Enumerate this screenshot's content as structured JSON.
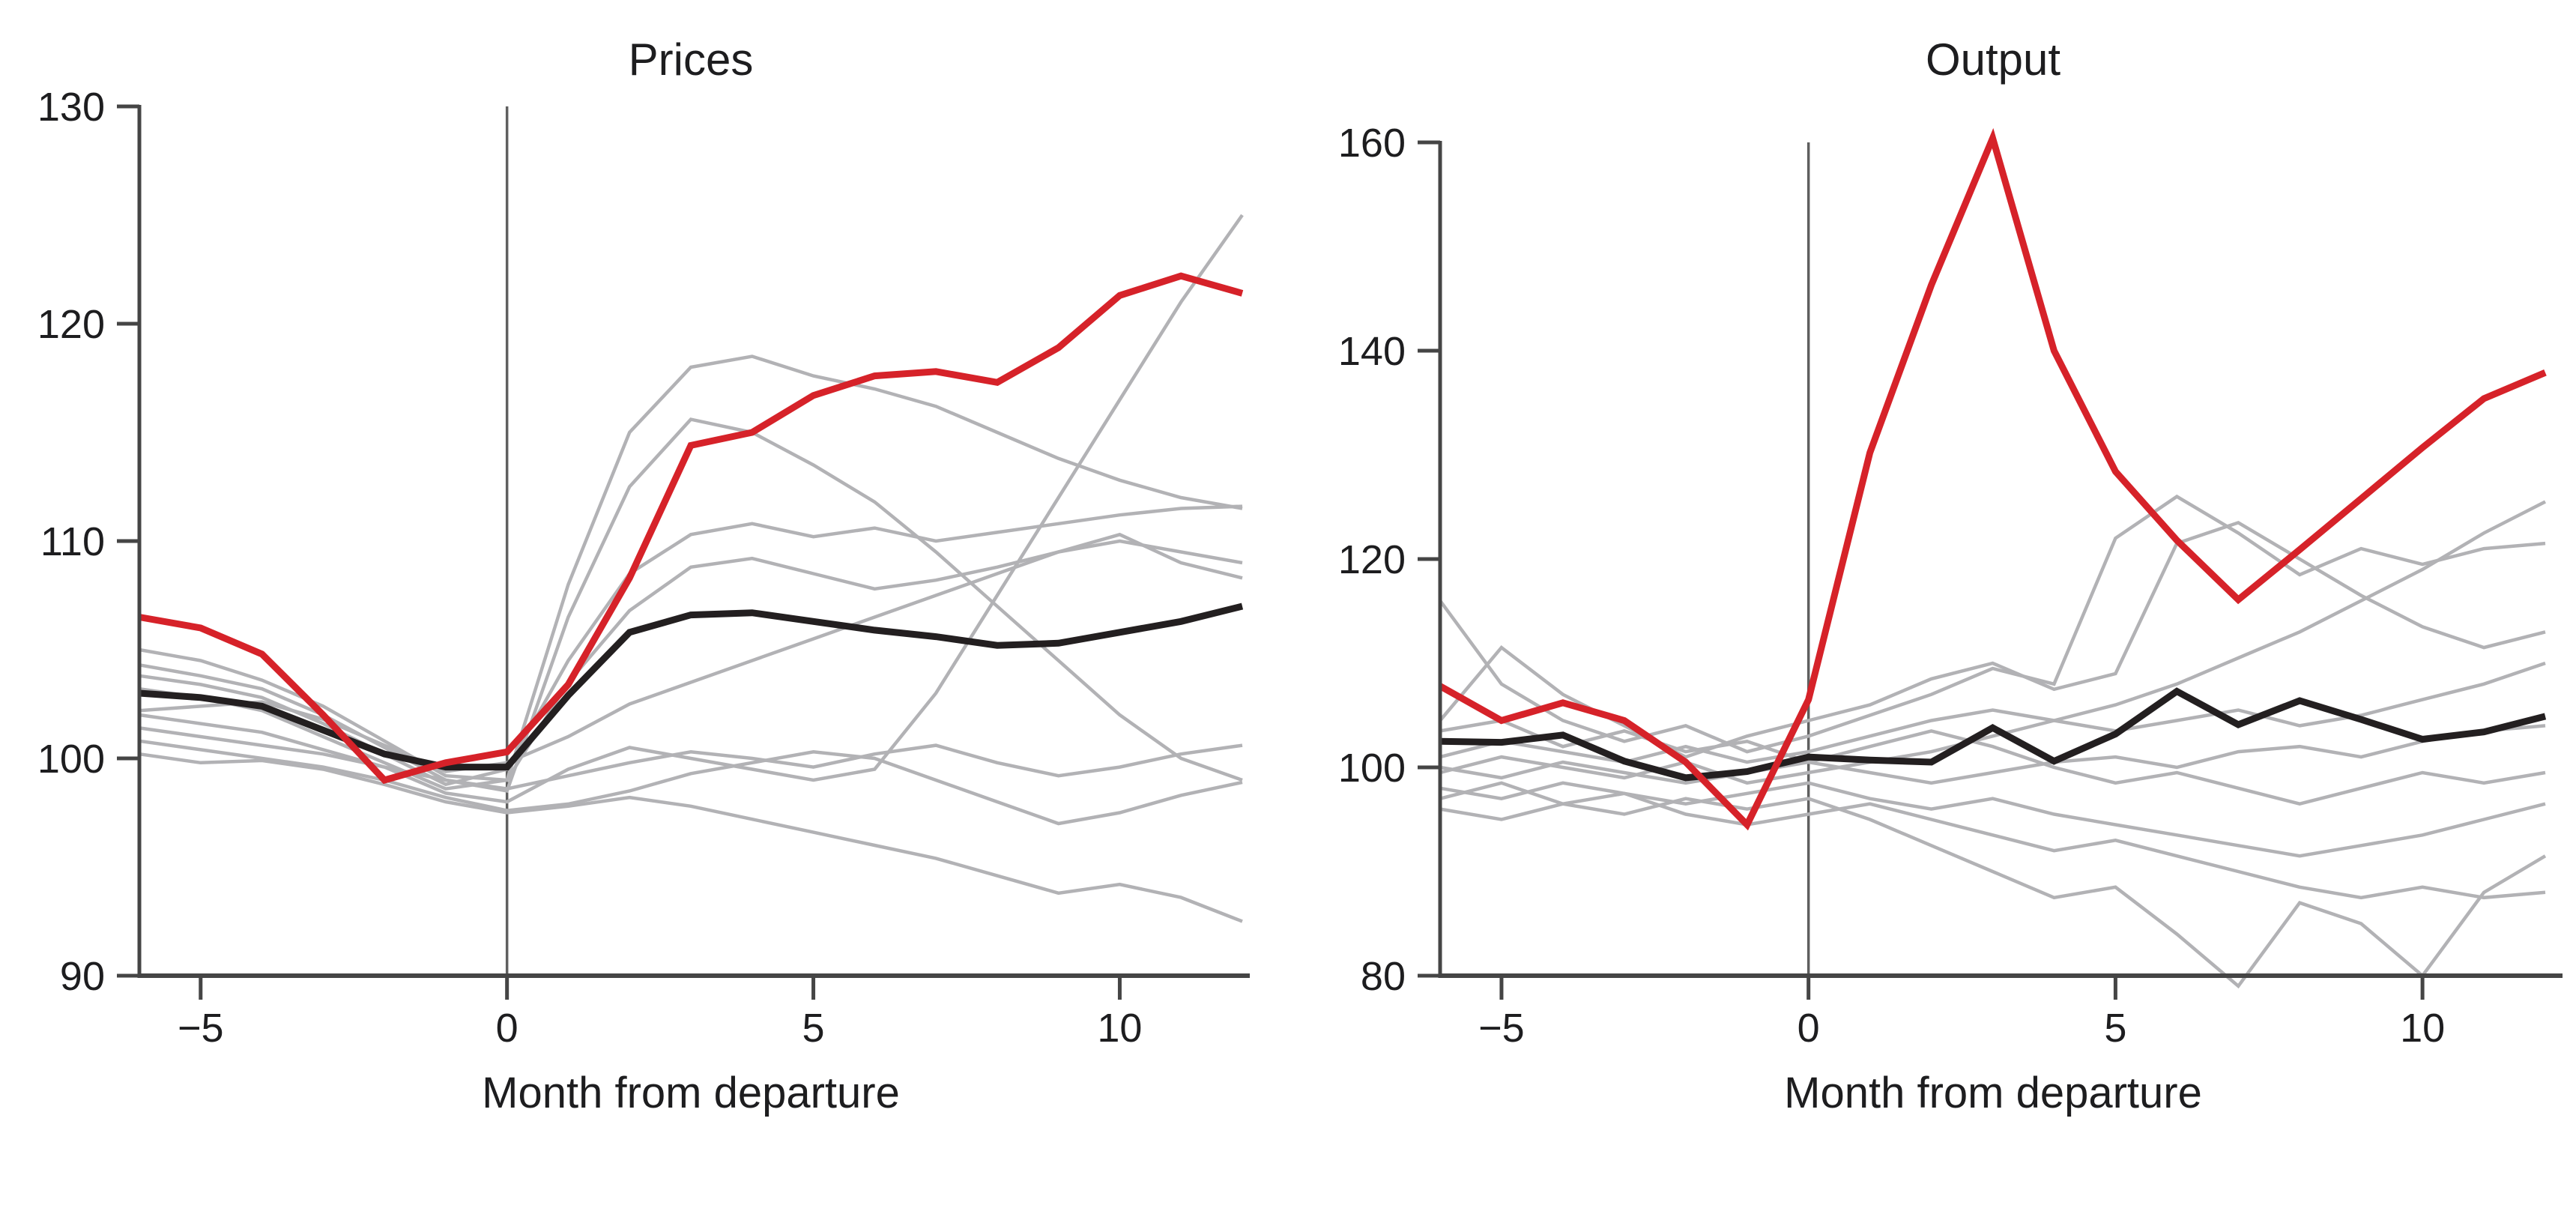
{
  "figure": {
    "background": "#ffffff",
    "text_color": "#1d1d1f",
    "axis_color": "#454545",
    "event_line_color": "#5f5f5f"
  },
  "chart_data": [
    {
      "type": "line",
      "title": "Prices",
      "xlabel": "Month from departure",
      "xlim": [
        -6,
        12
      ],
      "ylim": [
        90,
        130
      ],
      "grid": false,
      "legend": "none",
      "event_line_x": 0,
      "x": [
        -6,
        -5,
        -4,
        -3,
        -2,
        -1,
        0,
        1,
        2,
        3,
        4,
        5,
        6,
        7,
        8,
        9,
        10,
        11,
        12
      ],
      "xticks": [
        -5,
        0,
        5,
        10
      ],
      "xtick_labels": [
        "−5",
        "0",
        "5",
        "10"
      ],
      "yticks": [
        90,
        100,
        110,
        120,
        130
      ],
      "ytick_labels": [
        "90",
        "100",
        "110",
        "120",
        "130"
      ],
      "series": [
        {
          "name": "gray_1",
          "color": "#b2b2b5",
          "width": 4.5,
          "values": [
            105.0,
            104.5,
            103.6,
            102.4,
            100.8,
            99.2,
            99.0,
            108.0,
            115.0,
            118.0,
            118.5,
            117.6,
            117.0,
            116.2,
            115.0,
            113.8,
            112.8,
            112.0,
            111.5
          ]
        },
        {
          "name": "gray_2",
          "color": "#b2b2b5",
          "width": 4.5,
          "values": [
            104.3,
            103.8,
            103.2,
            102.0,
            100.5,
            99.0,
            98.5,
            106.5,
            112.5,
            115.6,
            115.0,
            113.5,
            111.8,
            109.5,
            107.0,
            104.5,
            102.0,
            100.0,
            99.0
          ]
        },
        {
          "name": "gray_3",
          "color": "#b2b2b5",
          "width": 4.5,
          "values": [
            103.8,
            103.4,
            102.8,
            101.6,
            100.2,
            98.8,
            99.5,
            104.5,
            108.5,
            110.3,
            110.8,
            110.2,
            110.6,
            110.0,
            110.4,
            110.8,
            111.2,
            111.5,
            111.6
          ]
        },
        {
          "name": "gray_4",
          "color": "#b2b2b5",
          "width": 4.5,
          "values": [
            103.2,
            102.8,
            102.2,
            101.0,
            99.8,
            98.6,
            99.0,
            103.5,
            106.8,
            108.8,
            109.2,
            108.5,
            107.8,
            108.2,
            108.8,
            109.5,
            110.0,
            109.5,
            109.0
          ]
        },
        {
          "name": "gray_5",
          "color": "#b2b2b5",
          "width": 4.5,
          "values": [
            102.0,
            101.6,
            101.2,
            100.4,
            99.6,
            98.4,
            98.0,
            99.5,
            100.5,
            100.0,
            99.5,
            99.0,
            99.5,
            103.0,
            107.5,
            112.0,
            116.5,
            121.0,
            125.0
          ]
        },
        {
          "name": "gray_6",
          "color": "#b2b2b5",
          "width": 4.5,
          "values": [
            102.2,
            102.4,
            102.6,
            101.8,
            100.6,
            99.4,
            99.8,
            101.0,
            102.5,
            103.5,
            104.5,
            105.5,
            106.5,
            107.5,
            108.5,
            109.5,
            110.3,
            109.0,
            108.3
          ]
        },
        {
          "name": "gray_7",
          "color": "#b2b2b5",
          "width": 4.5,
          "values": [
            101.4,
            101.0,
            100.6,
            100.2,
            99.6,
            99.0,
            98.6,
            99.2,
            99.8,
            100.3,
            100.0,
            99.6,
            100.2,
            100.6,
            99.8,
            99.2,
            99.6,
            100.2,
            100.6
          ]
        },
        {
          "name": "gray_8",
          "color": "#b2b2b5",
          "width": 4.5,
          "values": [
            100.8,
            100.4,
            100.0,
            99.6,
            99.0,
            98.2,
            97.6,
            97.9,
            98.5,
            99.3,
            99.8,
            100.3,
            100.0,
            99.0,
            98.0,
            97.0,
            97.5,
            98.3,
            98.9
          ]
        },
        {
          "name": "gray_9",
          "color": "#b2b2b5",
          "width": 4.5,
          "values": [
            100.2,
            99.8,
            99.9,
            99.5,
            98.8,
            98.0,
            97.5,
            97.8,
            98.2,
            97.8,
            97.2,
            96.6,
            96.0,
            95.4,
            94.6,
            93.8,
            94.2,
            93.6,
            92.5
          ]
        },
        {
          "name": "black_mean_line",
          "color": "#231f20",
          "width": 9,
          "values": [
            103.0,
            102.8,
            102.4,
            101.3,
            100.2,
            99.6,
            99.6,
            102.9,
            105.8,
            106.6,
            106.7,
            106.3,
            105.9,
            105.6,
            105.2,
            105.3,
            105.8,
            106.3,
            107.0
          ]
        },
        {
          "name": "red_highlight_line",
          "color": "#d62229",
          "width": 9,
          "values": [
            106.5,
            106.0,
            104.8,
            102.0,
            99.0,
            99.8,
            100.3,
            103.4,
            108.3,
            114.4,
            115.0,
            116.7,
            117.6,
            117.8,
            117.3,
            118.9,
            121.3,
            122.2,
            121.4
          ]
        }
      ]
    },
    {
      "type": "line",
      "title": "Output",
      "xlabel": "Month from departure",
      "xlim": [
        -6,
        12
      ],
      "ylim": [
        80,
        160
      ],
      "grid": false,
      "legend": "none",
      "event_line_x": 0,
      "x": [
        -6,
        -5,
        -4,
        -3,
        -2,
        -1,
        0,
        1,
        2,
        3,
        4,
        5,
        6,
        7,
        8,
        9,
        10,
        11,
        12
      ],
      "xticks": [
        -5,
        0,
        5,
        10
      ],
      "xtick_labels": [
        "−5",
        "0",
        "5",
        "10"
      ],
      "yticks": [
        80,
        100,
        120,
        140,
        160
      ],
      "ytick_labels": [
        "80",
        "100",
        "120",
        "140",
        "160"
      ],
      "series": [
        {
          "name": "gray_1",
          "color": "#b2b2b5",
          "width": 4.5,
          "values": [
            116.0,
            108.0,
            104.5,
            102.5,
            104.0,
            101.5,
            103.0,
            105.0,
            107.0,
            109.5,
            108.0,
            122.0,
            126.0,
            122.5,
            118.5,
            121.0,
            119.5,
            121.0,
            121.5
          ]
        },
        {
          "name": "gray_2",
          "color": "#b2b2b5",
          "width": 4.5,
          "values": [
            104.5,
            111.5,
            107.0,
            104.0,
            101.0,
            103.0,
            104.5,
            106.0,
            108.5,
            110.0,
            107.5,
            109.0,
            121.5,
            123.5,
            120.0,
            116.5,
            113.5,
            111.5,
            113.0
          ]
        },
        {
          "name": "gray_3",
          "color": "#b2b2b5",
          "width": 4.5,
          "values": [
            99.5,
            101.0,
            100.0,
            99.0,
            100.5,
            98.5,
            99.5,
            100.5,
            101.5,
            103.0,
            104.5,
            106.0,
            108.0,
            110.5,
            113.0,
            116.0,
            119.0,
            122.5,
            125.5
          ]
        },
        {
          "name": "gray_4",
          "color": "#b2b2b5",
          "width": 4.5,
          "values": [
            101.0,
            102.5,
            101.5,
            100.5,
            102.0,
            100.5,
            101.5,
            103.0,
            104.5,
            105.5,
            104.5,
            103.5,
            104.5,
            105.5,
            104.0,
            105.0,
            106.5,
            108.0,
            110.0
          ]
        },
        {
          "name": "gray_5",
          "color": "#b2b2b5",
          "width": 4.5,
          "values": [
            100.0,
            99.0,
            100.5,
            99.5,
            98.5,
            99.5,
            100.5,
            99.5,
            98.5,
            99.5,
            100.5,
            101.0,
            100.0,
            101.5,
            102.0,
            101.0,
            102.5,
            103.5,
            104.0
          ]
        },
        {
          "name": "gray_6",
          "color": "#b2b2b5",
          "width": 4.5,
          "values": [
            98.0,
            97.0,
            98.5,
            97.5,
            96.5,
            97.5,
            98.5,
            97.0,
            96.0,
            97.0,
            95.5,
            94.5,
            93.5,
            92.5,
            91.5,
            92.5,
            93.5,
            95.0,
            96.5
          ]
        },
        {
          "name": "gray_7",
          "color": "#b2b2b5",
          "width": 4.5,
          "values": [
            97.0,
            98.5,
            96.5,
            95.5,
            97.0,
            96.0,
            97.0,
            95.0,
            92.5,
            90.0,
            87.5,
            88.5,
            84.0,
            79.0,
            87.0,
            85.0,
            80.0,
            88.0,
            91.5
          ]
        },
        {
          "name": "gray_8",
          "color": "#b2b2b5",
          "width": 4.5,
          "values": [
            96.0,
            95.0,
            96.5,
            97.5,
            95.5,
            94.5,
            95.5,
            96.5,
            95.0,
            93.5,
            92.0,
            93.0,
            91.5,
            90.0,
            88.5,
            87.5,
            88.5,
            87.5,
            88.0
          ]
        },
        {
          "name": "gray_9",
          "color": "#b2b2b5",
          "width": 4.5,
          "values": [
            103.5,
            104.5,
            102.0,
            103.5,
            101.5,
            102.5,
            100.5,
            102.0,
            103.5,
            102.0,
            100.0,
            98.5,
            99.5,
            98.0,
            96.5,
            98.0,
            99.5,
            98.5,
            99.5
          ]
        },
        {
          "name": "black_mean_line",
          "color": "#231f20",
          "width": 9,
          "values": [
            102.5,
            102.4,
            103.1,
            100.6,
            99.0,
            99.6,
            101.0,
            100.7,
            100.5,
            103.8,
            100.6,
            103.2,
            107.3,
            104.1,
            106.4,
            104.6,
            102.7,
            103.4,
            104.9
          ]
        },
        {
          "name": "red_highlight_line",
          "color": "#d62229",
          "width": 9,
          "values": [
            107.8,
            104.5,
            106.2,
            104.5,
            100.5,
            94.5,
            106.5,
            130.2,
            146.3,
            160.4,
            140.0,
            128.4,
            121.8,
            116.1,
            120.9,
            125.8,
            130.7,
            135.4,
            137.9
          ]
        }
      ]
    }
  ]
}
